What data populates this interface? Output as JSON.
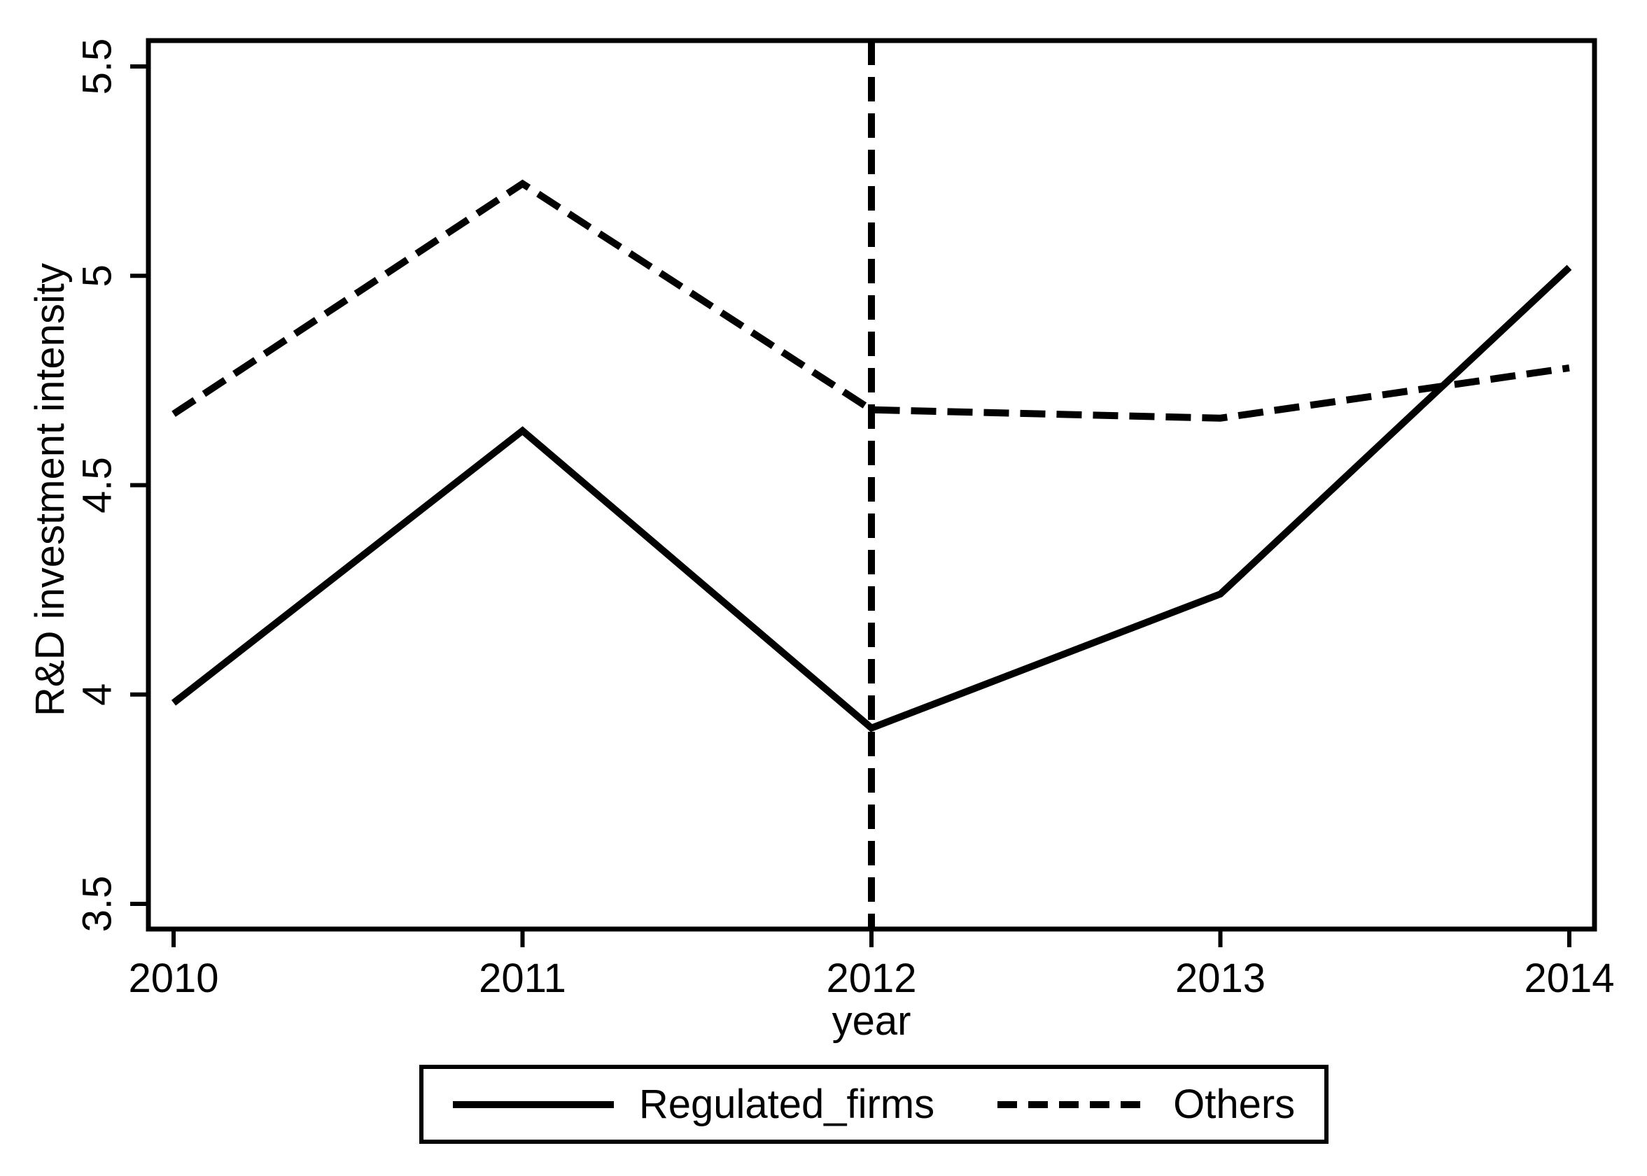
{
  "figure": {
    "background_color": "#ffffff",
    "foreground_color": "#000000"
  },
  "chart_data": {
    "type": "line",
    "title": "",
    "xlabel": "year",
    "ylabel": "R&D investment intensity",
    "x": [
      2010,
      2011,
      2012,
      2013,
      2014
    ],
    "series": [
      {
        "name": "Regulated_firms",
        "line_style": "solid",
        "color": "#000000",
        "values": [
          3.98,
          4.63,
          3.92,
          4.24,
          5.02
        ]
      },
      {
        "name": "Others",
        "line_style": "dashed",
        "color": "#000000",
        "values": [
          4.67,
          5.22,
          4.68,
          4.66,
          4.78
        ]
      }
    ],
    "x_ticks": [
      {
        "value": 2010,
        "label": "2010"
      },
      {
        "value": 2011,
        "label": "2011"
      },
      {
        "value": 2012,
        "label": "2012"
      },
      {
        "value": 2013,
        "label": "2013"
      },
      {
        "value": 2014,
        "label": "2014"
      }
    ],
    "y_ticks": [
      {
        "value": 3.5,
        "label": "3.5"
      },
      {
        "value": 4,
        "label": "4"
      },
      {
        "value": 4.5,
        "label": "4.5"
      },
      {
        "value": 5,
        "label": "5"
      },
      {
        "value": 5.5,
        "label": "5.5"
      }
    ],
    "xlim": [
      2009.93,
      2014.07
    ],
    "ylim": [
      3.44,
      5.56
    ],
    "grid": false,
    "reference_line": {
      "axis": "x",
      "value": 2012,
      "style": "dashed"
    },
    "legend_position": "bottom-outside"
  },
  "legend": {
    "entries": [
      {
        "label": "Regulated_firms",
        "style": "solid"
      },
      {
        "label": "Others",
        "style": "dashed"
      }
    ]
  }
}
